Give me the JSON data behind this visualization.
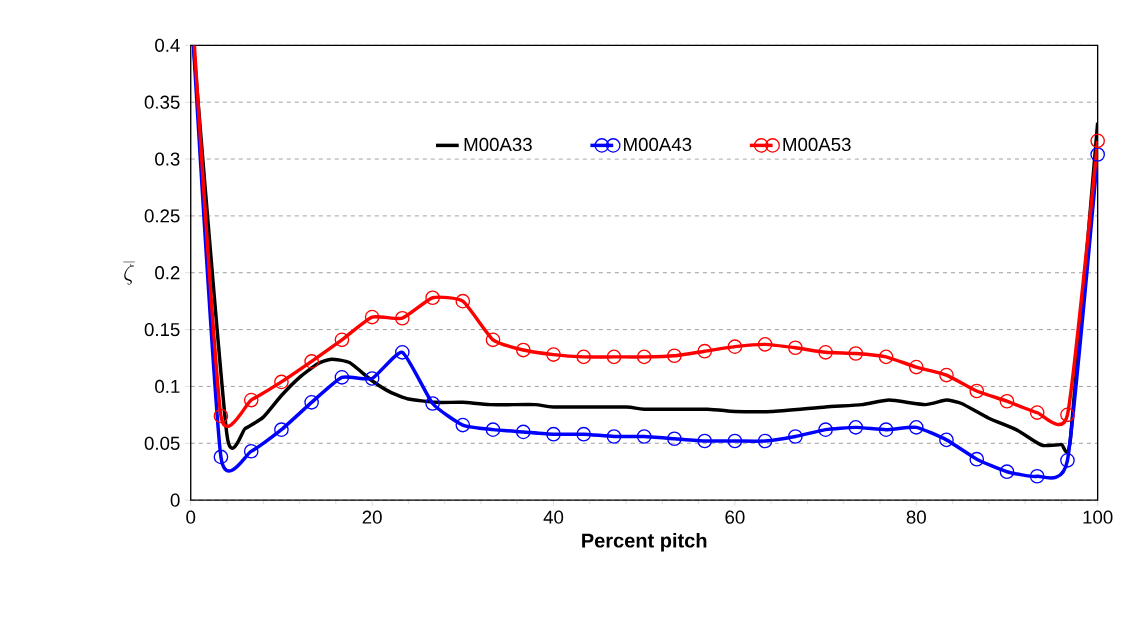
{
  "chart_data": {
    "type": "line",
    "xlabel": "Percent pitch",
    "ylabel": "\\overline{\\zeta}",
    "xlim": [
      0,
      100
    ],
    "xticks": [
      0,
      20,
      40,
      60,
      80,
      100
    ],
    "ylim": [
      0,
      0.4
    ],
    "yticks": [
      0,
      0.05,
      0.1,
      0.15,
      0.2,
      0.25,
      0.3,
      0.35,
      0.4
    ],
    "grid": "y",
    "legend": "top",
    "series": [
      {
        "name": "M00A33",
        "color": "#000000",
        "marker": "none",
        "x": [
          0.3,
          4,
          6,
          8,
          10,
          12,
          14,
          15.5,
          17.5,
          20,
          22,
          24,
          27,
          30,
          33,
          38,
          40,
          48,
          50,
          57,
          60,
          64,
          70,
          74,
          77,
          81,
          83.3,
          85,
          88,
          91,
          93,
          94,
          96,
          97,
          100
        ],
        "values": [
          0.4,
          0.057,
          0.063,
          0.073,
          0.092,
          0.108,
          0.12,
          0.124,
          0.121,
          0.105,
          0.095,
          0.089,
          0.086,
          0.086,
          0.084,
          0.084,
          0.082,
          0.082,
          0.08,
          0.08,
          0.078,
          0.078,
          0.082,
          0.084,
          0.088,
          0.084,
          0.088,
          0.085,
          0.072,
          0.062,
          0.052,
          0.048,
          0.049,
          0.054,
          0.332
        ]
      },
      {
        "name": "M00A43",
        "color": "#0000ff",
        "marker": "circle",
        "x": [
          0.3,
          3.33,
          6.67,
          10,
          13.33,
          16.67,
          20,
          23.33,
          26.67,
          30,
          33.33,
          36.67,
          40,
          43.33,
          46.67,
          50,
          53.33,
          56.67,
          60,
          63.33,
          66.67,
          70,
          73.33,
          76.67,
          80,
          83.33,
          86.67,
          90,
          93.33,
          96.67,
          100
        ],
        "values": [
          0.4,
          0.038,
          0.043,
          0.062,
          0.086,
          0.108,
          0.107,
          0.13,
          0.085,
          0.066,
          0.062,
          0.06,
          0.058,
          0.058,
          0.056,
          0.056,
          0.054,
          0.052,
          0.052,
          0.052,
          0.056,
          0.062,
          0.064,
          0.062,
          0.064,
          0.053,
          0.036,
          0.025,
          0.021,
          0.035,
          0.304
        ]
      },
      {
        "name": "M00A53",
        "color": "#ff0000",
        "marker": "circle",
        "x": [
          0.4,
          3.33,
          6.67,
          10,
          13.33,
          16.67,
          20,
          23.33,
          26.67,
          30,
          33.33,
          36.67,
          40,
          43.33,
          46.67,
          50,
          53.33,
          56.67,
          60,
          63.33,
          66.67,
          70,
          73.33,
          76.67,
          80,
          83.33,
          86.67,
          90,
          93.33,
          96.67,
          100
        ],
        "values": [
          0.4,
          0.074,
          0.088,
          0.104,
          0.122,
          0.141,
          0.161,
          0.16,
          0.178,
          0.175,
          0.141,
          0.132,
          0.128,
          0.126,
          0.126,
          0.126,
          0.127,
          0.131,
          0.135,
          0.137,
          0.134,
          0.13,
          0.129,
          0.126,
          0.117,
          0.11,
          0.096,
          0.087,
          0.077,
          0.075,
          0.316
        ]
      }
    ]
  }
}
